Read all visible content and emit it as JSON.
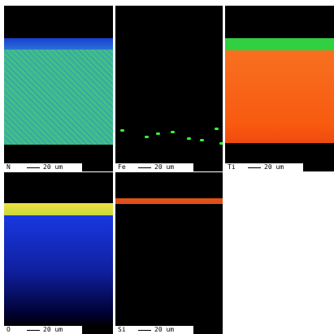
{
  "panels": [
    {
      "element": "N",
      "scale": "20 um"
    },
    {
      "element": "Fe",
      "scale": "20 um"
    },
    {
      "element": "Ti",
      "scale": "20 um"
    },
    {
      "element": "O",
      "scale": "20 um"
    },
    {
      "element": "Si",
      "scale": "20 um"
    }
  ]
}
